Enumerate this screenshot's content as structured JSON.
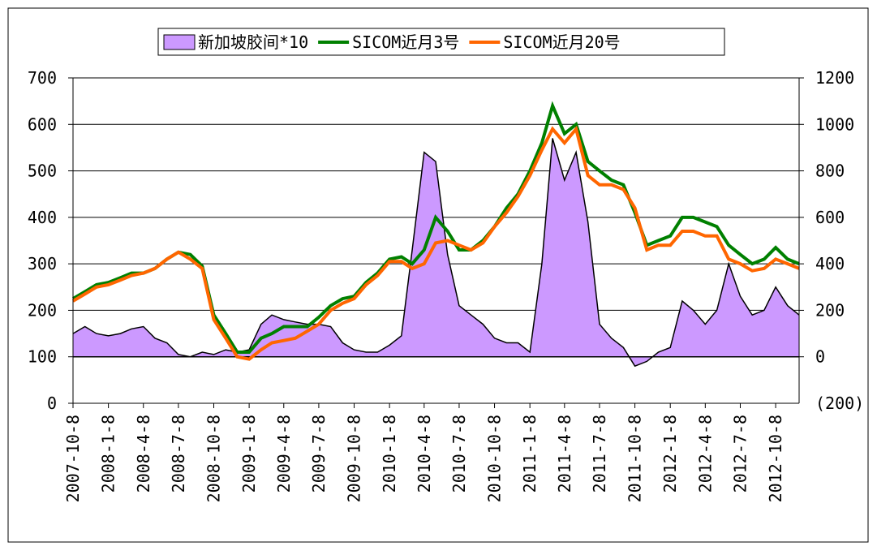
{
  "chart_data": {
    "type": "area-line",
    "series": [
      {
        "name": "新加坡胶间*10",
        "type": "area",
        "axis": "y2",
        "color": "#cc99ff",
        "values": [
          100,
          130,
          100,
          90,
          100,
          120,
          130,
          80,
          60,
          10,
          0,
          20,
          10,
          30,
          20,
          30,
          140,
          180,
          160,
          150,
          140,
          140,
          130,
          60,
          30,
          20,
          20,
          50,
          90,
          460,
          880,
          840,
          440,
          220,
          180,
          140,
          80,
          60,
          60,
          20,
          400,
          940,
          760,
          880,
          580,
          140,
          80,
          40,
          -40,
          -20,
          20,
          40,
          240,
          200,
          140,
          200,
          400,
          260,
          180,
          200,
          300,
          220,
          180
        ]
      },
      {
        "name": "SICOM近月3号",
        "type": "line",
        "color": "#008000",
        "values": [
          225,
          240,
          255,
          260,
          270,
          280,
          280,
          290,
          310,
          325,
          320,
          295,
          190,
          150,
          110,
          110,
          140,
          150,
          165,
          165,
          165,
          185,
          210,
          225,
          230,
          260,
          280,
          310,
          315,
          300,
          330,
          400,
          370,
          330,
          330,
          350,
          380,
          420,
          450,
          500,
          560,
          640,
          580,
          600,
          520,
          500,
          480,
          470,
          410,
          340,
          350,
          360,
          400,
          400,
          390,
          380,
          340,
          320,
          300,
          310,
          335,
          310,
          300
        ]
      },
      {
        "name": "SICOM近月20号",
        "type": "line",
        "color": "#ff6600",
        "values": [
          220,
          235,
          250,
          255,
          265,
          275,
          280,
          290,
          310,
          325,
          310,
          290,
          180,
          140,
          100,
          95,
          115,
          130,
          135,
          140,
          155,
          170,
          200,
          215,
          225,
          255,
          275,
          305,
          305,
          290,
          300,
          345,
          350,
          340,
          330,
          345,
          380,
          410,
          445,
          490,
          545,
          590,
          560,
          590,
          490,
          470,
          470,
          460,
          420,
          330,
          340,
          340,
          370,
          370,
          360,
          360,
          310,
          300,
          285,
          290,
          310,
          300,
          290
        ]
      }
    ],
    "x": [
      "2007-10-8",
      "2007-11-8",
      "2007-12-8",
      "2008-1-8",
      "2008-2-8",
      "2008-3-8",
      "2008-4-8",
      "2008-5-8",
      "2008-6-8",
      "2008-7-8",
      "2008-8-8",
      "2008-9-8",
      "2008-10-8",
      "2008-11-8",
      "2008-12-8",
      "2009-1-8",
      "2009-2-8",
      "2009-3-8",
      "2009-4-8",
      "2009-5-8",
      "2009-6-8",
      "2009-7-8",
      "2009-8-8",
      "2009-9-8",
      "2009-10-8",
      "2009-11-8",
      "2009-12-8",
      "2010-1-8",
      "2010-2-8",
      "2010-3-8",
      "2010-4-8",
      "2010-5-8",
      "2010-6-8",
      "2010-7-8",
      "2010-8-8",
      "2010-9-8",
      "2010-10-8",
      "2010-11-8",
      "2010-12-8",
      "2011-1-8",
      "2011-2-8",
      "2011-3-8",
      "2011-4-8",
      "2011-5-8",
      "2011-6-8",
      "2011-7-8",
      "2011-8-8",
      "2011-9-8",
      "2011-10-8",
      "2011-11-8",
      "2011-12-8",
      "2012-1-8",
      "2012-2-8",
      "2012-3-8",
      "2012-4-8",
      "2012-5-8",
      "2012-6-8",
      "2012-7-8",
      "2012-8-8",
      "2012-9-8",
      "2012-10-8",
      "2012-11-8",
      "2012-12-8"
    ],
    "xlim": [
      "2007-10-8",
      "2012-12-8"
    ],
    "xticks": [
      "2007-10-8",
      "2008-1-8",
      "2008-4-8",
      "2008-7-8",
      "2008-10-8",
      "2009-1-8",
      "2009-4-8",
      "2009-7-8",
      "2009-10-8",
      "2010-1-8",
      "2010-4-8",
      "2010-7-8",
      "2010-10-8",
      "2011-1-8",
      "2011-4-8",
      "2011-7-8",
      "2011-10-8",
      "2012-1-8",
      "2012-4-8",
      "2012-7-8",
      "2012-10-8"
    ],
    "ylim": [
      0,
      700
    ],
    "yticks": [
      0,
      100,
      200,
      300,
      400,
      500,
      600,
      700
    ],
    "y2lim": [
      -200,
      1200
    ],
    "y2ticks": [
      {
        "value": -200,
        "label": "(200)"
      },
      0,
      200,
      400,
      600,
      800,
      1000,
      1200
    ],
    "y2_negative_label_color": "#ff0000",
    "grid": true,
    "legend": "top"
  }
}
